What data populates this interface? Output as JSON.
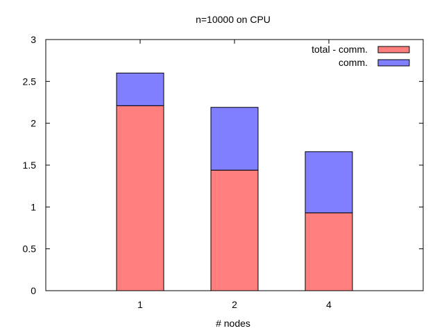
{
  "chart_data": {
    "type": "bar",
    "stacked": true,
    "title": "n=10000 on CPU",
    "xlabel": "# nodes",
    "ylabel": "",
    "categories": [
      "1",
      "2",
      "4"
    ],
    "series": [
      {
        "name": "total - comm.",
        "color": "#ff7f7f",
        "values": [
          2.21,
          1.44,
          0.93
        ]
      },
      {
        "name": "comm.",
        "color": "#7f7fff",
        "values": [
          0.39,
          0.75,
          0.73
        ]
      }
    ],
    "ylim": [
      0,
      3
    ],
    "yticks": [
      "0",
      "0.5",
      "1",
      "1.5",
      "2",
      "2.5",
      "3"
    ],
    "grid": false,
    "legend_position": "top-right"
  }
}
